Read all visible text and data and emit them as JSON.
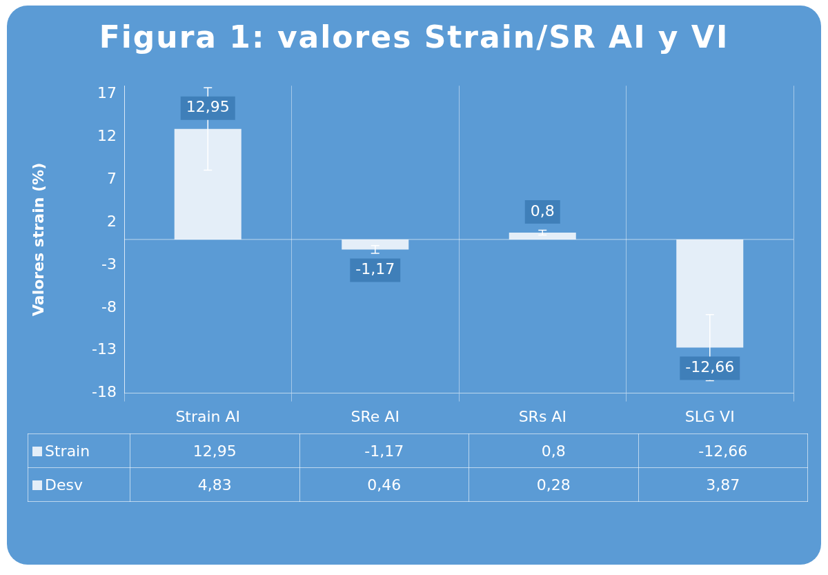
{
  "chart_data": {
    "type": "bar",
    "title": "Figura 1: valores Strain/SR AI y VI",
    "ylabel": "Valores strain (%)",
    "categories": [
      "Strain AI",
      "SRe AI",
      "SRs AI",
      "SLG VI"
    ],
    "series": [
      {
        "name": "Strain",
        "color": "#e4eef8",
        "values": [
          12.95,
          -1.17,
          0.8,
          -12.66
        ],
        "value_labels": [
          "12,95",
          "-1,17",
          "0,8",
          "-12,66"
        ],
        "errors": [
          4.83,
          0.46,
          0.28,
          3.87
        ]
      }
    ],
    "ylim": [
      -18,
      18
    ],
    "yticks": [
      -18,
      -13,
      -8,
      -3,
      2,
      7,
      12,
      17
    ],
    "grid": "x",
    "annotations": [
      "Desv",
      "4,83",
      "0,46",
      "0,28",
      "3,87"
    ]
  }
}
